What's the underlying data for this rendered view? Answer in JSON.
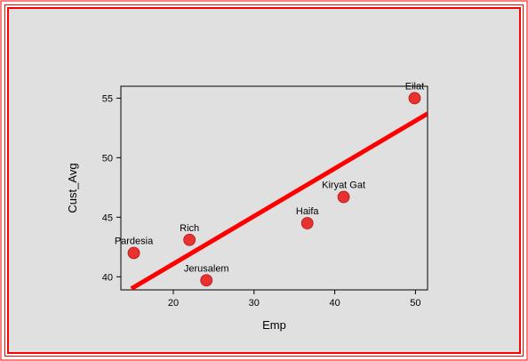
{
  "chart_data": {
    "type": "scatter",
    "title": "",
    "xlabel": "Emp",
    "ylabel": "Cust_Avg",
    "xlim": [
      13.5,
      51.5
    ],
    "ylim": [
      38.9,
      56.0
    ],
    "xticks": [
      20,
      30,
      40,
      50
    ],
    "yticks": [
      40,
      45,
      50,
      55
    ],
    "grid": false,
    "legend": "none",
    "series": [
      {
        "points": [
          {
            "label": "Pardesia",
            "x": 15.1,
            "y": 42.0
          },
          {
            "label": "Rich",
            "x": 22.0,
            "y": 43.1
          },
          {
            "label": "Jerusalem",
            "x": 24.1,
            "y": 39.7
          },
          {
            "label": "Haifa",
            "x": 36.6,
            "y": 44.5
          },
          {
            "label": "Kiryat Gat",
            "x": 41.1,
            "y": 46.7
          },
          {
            "label": "Eilat",
            "x": 49.9,
            "y": 55.0
          }
        ]
      }
    ],
    "fit_line": {
      "x": [
        14.8,
        51.5
      ],
      "y": [
        39.0,
        53.7
      ]
    },
    "colors": {
      "point": "#e8322f",
      "fit_line": "#ff0000",
      "frame_border": "#ff0000",
      "background": "#e0e0e0",
      "plot_area": "#e0e0e0"
    }
  }
}
